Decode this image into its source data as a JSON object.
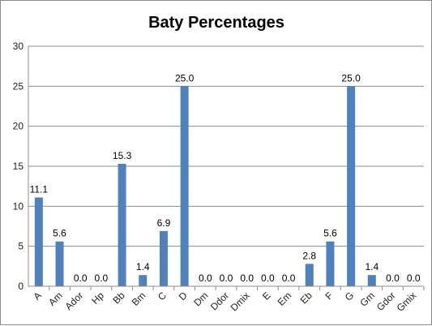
{
  "chart_data": {
    "type": "bar",
    "title": "Baty Percentages",
    "xlabel": "",
    "ylabel": "",
    "ylim": [
      0,
      30
    ],
    "yticks": [
      0,
      5,
      10,
      15,
      20,
      25,
      30
    ],
    "grid": true,
    "legend": "none",
    "bar_color": "#4f81bd",
    "categories": [
      "A",
      "Am",
      "Ador",
      "Hp",
      "Bb",
      "Bm",
      "C",
      "D",
      "Dm",
      "Ddor",
      "Dmix",
      "E",
      "Em",
      "Eb",
      "F",
      "G",
      "Gm",
      "Gdor",
      "Gmix"
    ],
    "values": [
      11.1,
      5.6,
      0.0,
      0.0,
      15.3,
      1.4,
      6.9,
      25.0,
      0.0,
      0.0,
      0.0,
      0.0,
      0.0,
      2.8,
      5.6,
      25.0,
      1.4,
      0.0,
      0.0
    ],
    "data_labels": [
      "11.1",
      "5.6",
      "0.0",
      "0.0",
      "15.3",
      "1.4",
      "6.9",
      "25.0",
      "0.0",
      "0.0",
      "0.0",
      "0.0",
      "0.0",
      "2.8",
      "5.6",
      "25.0",
      "1.4",
      "0.0",
      "0.0"
    ]
  }
}
